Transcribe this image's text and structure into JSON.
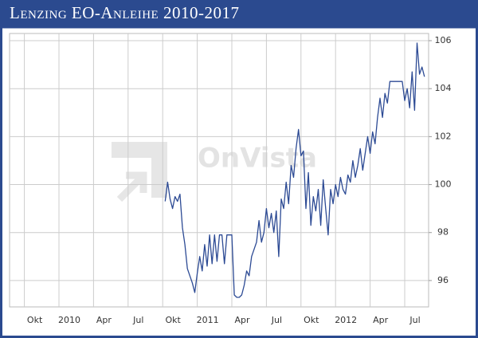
{
  "chart_data": {
    "type": "line",
    "title": "Lenzing EO-Anleihe 2010-2017",
    "watermark": "OnVista",
    "categories": [
      null,
      null,
      null,
      null,
      null,
      null,
      "Okt",
      null,
      null,
      null,
      null,
      null,
      null,
      null,
      null,
      null,
      null,
      null,
      null,
      null,
      "2010",
      null,
      null,
      null,
      null,
      null,
      null,
      null,
      null,
      null,
      null,
      null,
      null,
      null,
      "Apr",
      null,
      null,
      null,
      null,
      null,
      null,
      null,
      null,
      null,
      null,
      null,
      null,
      null,
      "Jul",
      null,
      null,
      null,
      null,
      null,
      null,
      null,
      null,
      null,
      null,
      null,
      null,
      null,
      "Okt",
      null,
      null,
      null,
      null,
      null,
      null,
      null,
      null,
      null,
      null,
      null,
      null,
      null,
      "2011",
      null,
      null,
      null,
      null,
      null,
      null,
      null,
      null,
      null,
      null,
      null,
      null,
      null,
      "Apr",
      null,
      null,
      null,
      null,
      null,
      null,
      null,
      null,
      null,
      null,
      null,
      null,
      null,
      "Jul",
      null,
      null,
      null,
      null,
      null,
      null,
      null,
      null,
      null,
      null,
      null,
      null,
      null,
      "Okt",
      null,
      null,
      null,
      null,
      null,
      null,
      null,
      null,
      null,
      null,
      null,
      null,
      null,
      "2012",
      null,
      null,
      null,
      null,
      null,
      null,
      null,
      null,
      null,
      null,
      null,
      null,
      null,
      "Apr",
      null,
      null,
      null,
      null,
      null,
      null,
      null,
      null,
      null,
      null,
      null,
      null,
      null,
      "Jul",
      null,
      null,
      null,
      null,
      null,
      null,
      null,
      null
    ],
    "series": [
      {
        "color": "#2c4a94",
        "values": [
          null,
          null,
          null,
          null,
          null,
          null,
          null,
          null,
          null,
          null,
          null,
          null,
          null,
          null,
          null,
          null,
          null,
          null,
          null,
          null,
          null,
          null,
          null,
          null,
          null,
          null,
          null,
          null,
          null,
          null,
          null,
          null,
          null,
          null,
          null,
          null,
          null,
          null,
          null,
          null,
          null,
          null,
          null,
          null,
          null,
          null,
          null,
          null,
          null,
          null,
          null,
          null,
          null,
          null,
          null,
          null,
          null,
          null,
          null,
          null,
          null,
          null,
          null,
          99.3,
          100.1,
          99.4,
          99.0,
          99.5,
          99.3,
          99.6,
          98.2,
          97.5,
          96.5,
          96.2,
          95.9,
          95.5,
          96.3,
          97.0,
          96.4,
          97.5,
          96.6,
          97.9,
          96.7,
          97.9,
          96.8,
          97.9,
          97.9,
          96.7,
          97.9,
          97.9,
          97.9,
          95.4,
          95.3,
          95.3,
          95.4,
          95.8,
          96.4,
          96.2,
          97.0,
          97.3,
          97.6,
          98.5,
          97.6,
          98.0,
          99.0,
          98.2,
          98.8,
          98.0,
          98.9,
          97.0,
          99.4,
          99.0,
          100.1,
          99.2,
          100.8,
          100.3,
          101.5,
          102.3,
          101.2,
          101.4,
          99.0,
          100.5,
          98.3,
          99.5,
          98.9,
          99.8,
          98.3,
          100.2,
          99.0,
          97.9,
          99.8,
          99.2,
          100.0,
          99.5,
          100.3,
          99.8,
          99.6,
          100.4,
          100.1,
          101.0,
          100.3,
          100.8,
          101.5,
          100.6,
          101.3,
          102.0,
          101.3,
          102.2,
          101.7,
          102.8,
          103.6,
          102.8,
          103.8,
          103.4,
          104.3,
          104.3,
          104.3,
          104.3,
          104.3,
          104.3,
          103.5,
          104.0,
          103.2,
          104.7,
          103.1,
          105.9,
          104.6,
          104.9,
          104.5
        ]
      }
    ],
    "ylim": [
      94.9,
      106.3
    ],
    "yticks": [
      96,
      98,
      100,
      102,
      104,
      106
    ],
    "grid": true,
    "y_axis_side": "right"
  }
}
